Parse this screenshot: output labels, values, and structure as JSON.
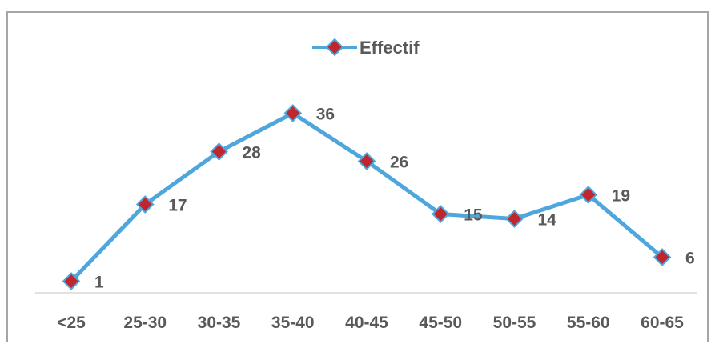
{
  "chart_data": {
    "type": "line",
    "categories": [
      "<25",
      "25-30",
      "30-35",
      "35-40",
      "40-45",
      "45-50",
      "50-55",
      "55-60",
      "60-65"
    ],
    "series": [
      {
        "name": "Effectif",
        "values": [
          1,
          17,
          28,
          36,
          26,
          15,
          14,
          19,
          6
        ]
      }
    ],
    "title": "",
    "xlabel": "",
    "ylabel": "",
    "ylim": [
      0,
      50
    ],
    "grid": false,
    "legend_position": "top-center",
    "data_labels": true,
    "colors": {
      "line": "#4ea7dc",
      "marker_fill": "#c0262d",
      "text": "#595959",
      "axis": "#d9d9d9"
    }
  }
}
